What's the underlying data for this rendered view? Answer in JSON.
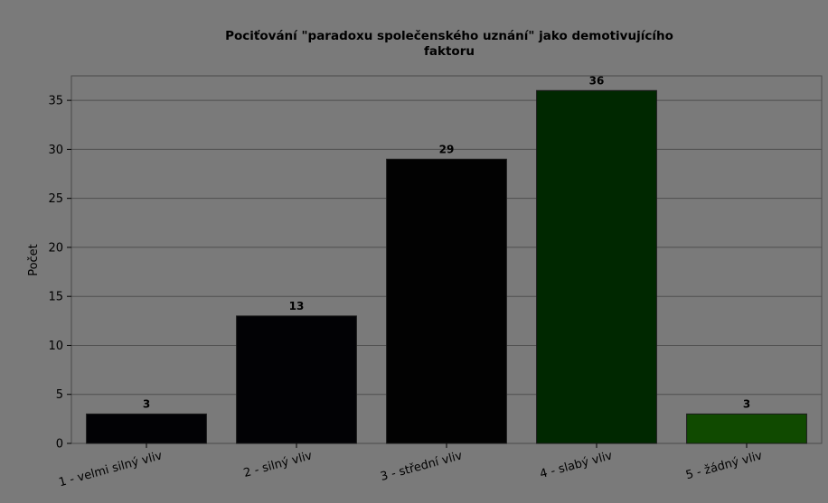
{
  "chart_data": {
    "type": "bar",
    "title": "Pociťování \"paradoxu společenského uznání\" jako demotivujícího faktoru",
    "title_lines": [
      "Pociťování \"paradoxu společenského uznání\" jako demotivujícího",
      "faktoru"
    ],
    "xlabel": "",
    "ylabel": "Počet",
    "categories": [
      "1 - velmi silný vliv",
      "2 - silný vliv",
      "3 - střední vliv",
      "4 - slabý vliv",
      "5 - žádný vliv"
    ],
    "values": [
      3,
      13,
      29,
      36,
      3
    ],
    "data_labels": [
      "3",
      "13",
      "29",
      "36",
      "3"
    ],
    "bar_colors": [
      "#020205",
      "#020205",
      "#020202",
      "#002800",
      "#104a00"
    ],
    "ylim": [
      0,
      37.5
    ],
    "yticks": [
      0,
      5,
      10,
      15,
      20,
      25,
      30,
      35
    ],
    "ytick_labels": [
      "0",
      "5",
      "10",
      "15",
      "20",
      "25",
      "30",
      "35"
    ],
    "grid": true,
    "background_color": "#7a7a7a",
    "gridline_color": "#4f4f4f"
  }
}
